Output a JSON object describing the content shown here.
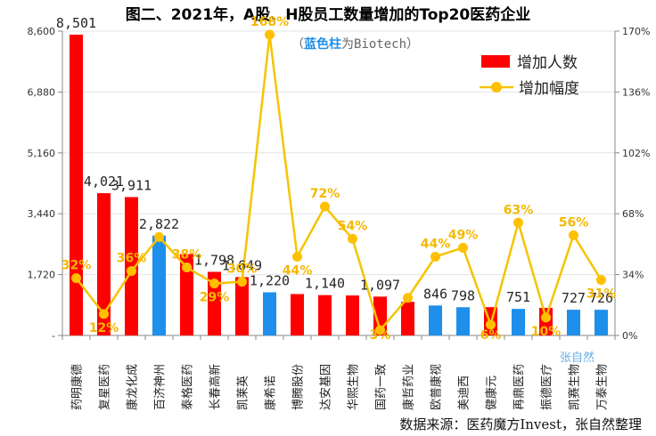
{
  "chart_data": {
    "type": "bar+line",
    "title": "图二、2021年，A股、H股员工数量增加的Top20医药企业",
    "note": {
      "highlight": "蓝色柱",
      "rest": "为Biotech）",
      "open": "（"
    },
    "source": "数据来源：医药魔方Invest，张自然整理",
    "watermark": "张自然",
    "categories": [
      "药明康德",
      "复星医药",
      "康龙化成",
      "百济神州",
      "泰格医药",
      "长春高新",
      "凯莱英",
      "康希诺",
      "博腾股份",
      "达安基因",
      "华熙生物",
      "国药一致",
      "康哲药业",
      "欧普康视",
      "美迪西",
      "健康元",
      "再鼎医药",
      "振德医疗",
      "凯赛生物",
      "万泰生物"
    ],
    "series": [
      {
        "name": "增加人数",
        "type": "bar",
        "axis": "left",
        "values": [
          8501,
          4021,
          3911,
          2822,
          2300,
          1798,
          1649,
          1220,
          1170,
          1140,
          1130,
          1097,
          950,
          846,
          798,
          800,
          751,
          780,
          727,
          726
        ],
        "labels": [
          "8,501",
          "4,021",
          "3,911",
          "2,822",
          "",
          "1,798",
          "1,649",
          "1,220",
          "",
          "1,140",
          "",
          "1,097",
          "",
          "846",
          "798",
          "",
          "751",
          "",
          "727",
          "726"
        ],
        "is_biotech": [
          false,
          false,
          false,
          true,
          false,
          false,
          false,
          true,
          false,
          false,
          false,
          false,
          false,
          true,
          true,
          false,
          true,
          false,
          true,
          true
        ]
      },
      {
        "name": "增加幅度",
        "type": "line",
        "axis": "right",
        "values": [
          0.32,
          0.12,
          0.36,
          0.55,
          0.38,
          0.29,
          0.3,
          1.68,
          0.44,
          0.72,
          0.54,
          0.03,
          0.21,
          0.44,
          0.49,
          0.06,
          0.63,
          0.1,
          0.56,
          0.31
        ],
        "labels": [
          "32%",
          "12%",
          "36%",
          "",
          "38%",
          "29%",
          "30%",
          "168%",
          "44%",
          "72%",
          "54%",
          "3%",
          "",
          "44%",
          "49%",
          "6%",
          "63%",
          "10%",
          "56%",
          "31%"
        ]
      }
    ],
    "left_axis": {
      "min": 0,
      "max": 8600,
      "ticks": [
        0,
        1720,
        3440,
        5160,
        6880,
        8600
      ],
      "tick_labels": [
        "-",
        "1,720",
        "3,440",
        "5,160",
        "6,880",
        "8,600"
      ]
    },
    "right_axis": {
      "min": 0,
      "max": 1.7,
      "ticks": [
        0,
        0.34,
        0.68,
        1.02,
        1.36,
        1.7
      ],
      "tick_labels": [
        "0%",
        "34%",
        "68%",
        "102%",
        "136%",
        "170%"
      ]
    },
    "legend": {
      "position": "top-right",
      "entries": [
        "增加人数",
        "增加幅度"
      ]
    },
    "colors": {
      "bar": "#FF0000",
      "biotech_bar": "#1E8FEA",
      "line": "#F5C400",
      "marker": "#FFC000",
      "pct_text": "#F5B800",
      "note_blue": "#1E8FEA"
    }
  }
}
